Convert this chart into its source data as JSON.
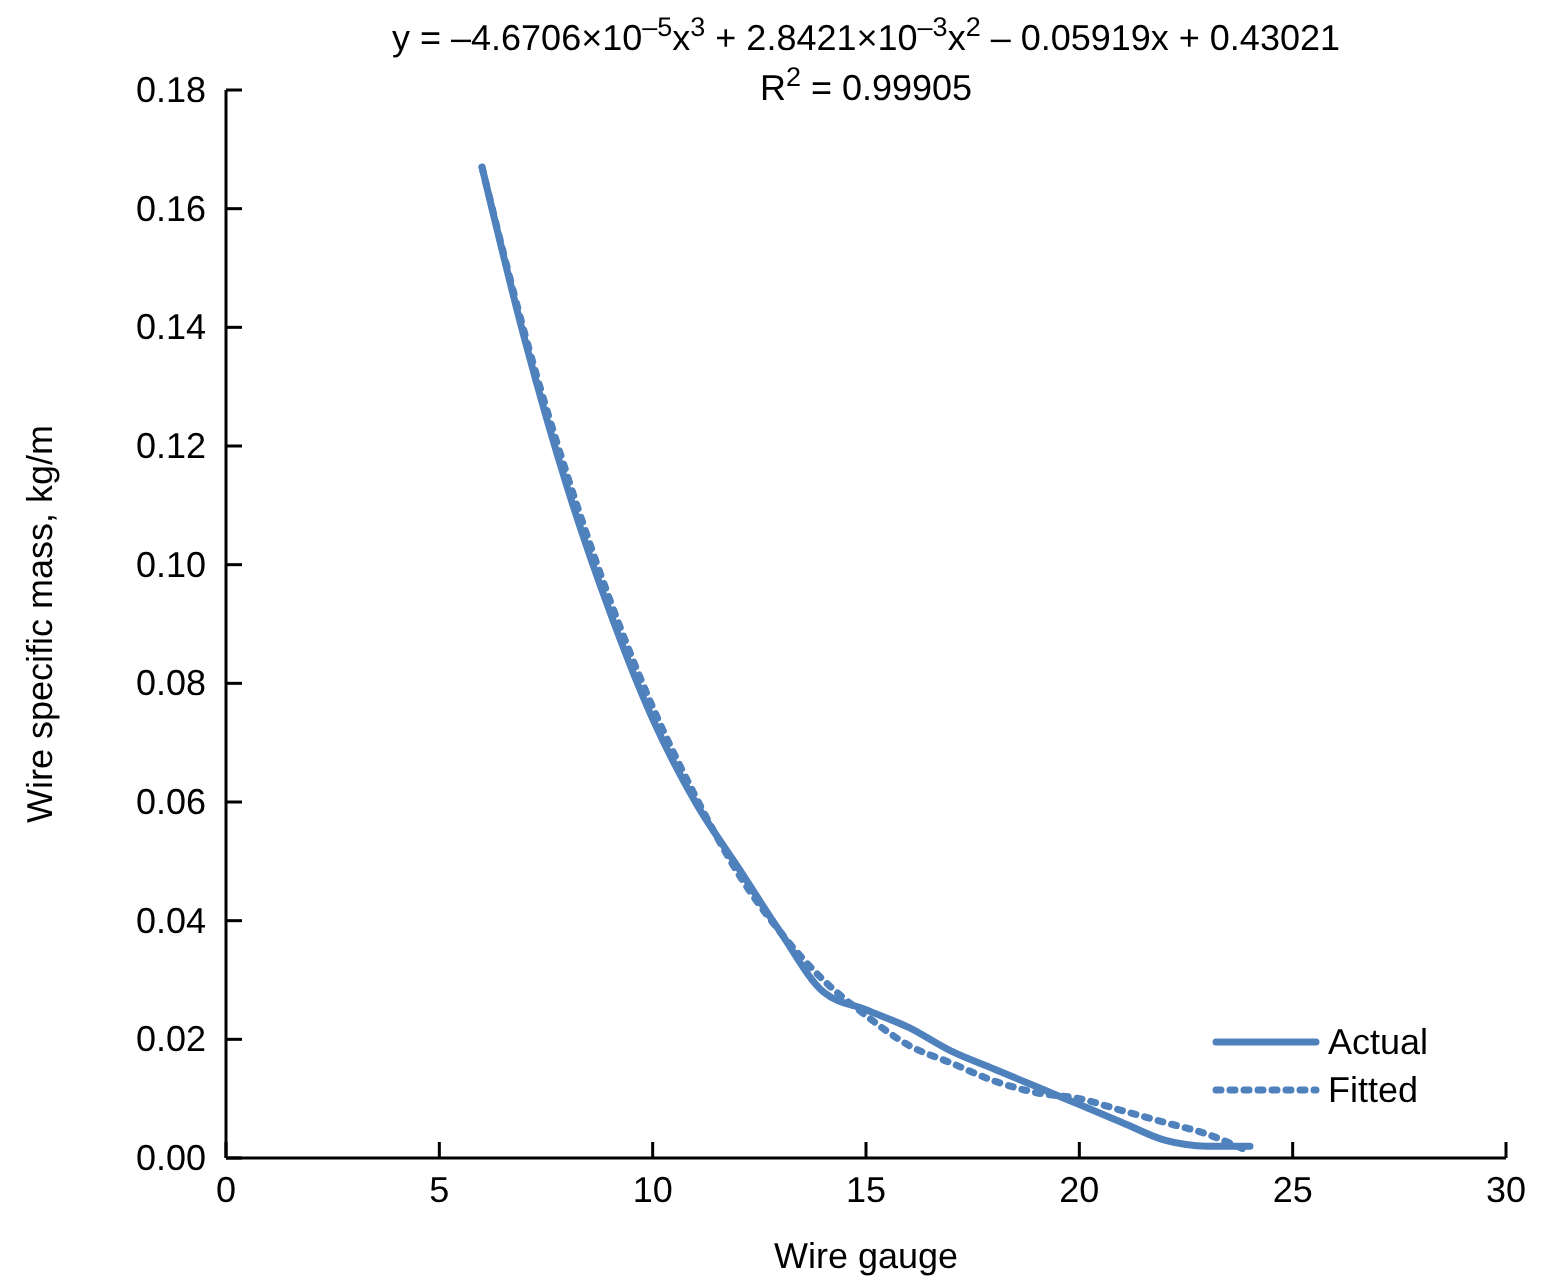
{
  "chart_data": {
    "type": "line",
    "title": "y = –4.6706×10$^{–5}$x$^{3}$ + 2.8421×10$^{–3}$x$^{2}$ – 0.05919x + 0.43021",
    "subtitle": "R$^{2}$ = 0.99905",
    "xlabel": "Wire gauge",
    "ylabel": "Wire specific mass, kg/m",
    "x": [
      6,
      7,
      8,
      9,
      10,
      11,
      12,
      13,
      14,
      15,
      16,
      17,
      18,
      19,
      20,
      21,
      22,
      23,
      24
    ],
    "series": [
      {
        "name": "Actual",
        "color": "#4f81bd",
        "line_style": "solid",
        "values": [
          0.167,
          0.138,
          0.113,
          0.092,
          0.074,
          0.06,
          0.049,
          0.038,
          0.028,
          0.025,
          0.022,
          0.018,
          0.015,
          0.012,
          0.009,
          0.006,
          0.003,
          0.002,
          0.002
        ]
      },
      {
        "name": "Fitted",
        "color": "#4f81bd",
        "line_style": "dotted",
        "values": [
          0.167,
          0.139,
          0.115,
          0.094,
          0.076,
          0.061,
          0.048,
          0.038,
          0.03,
          0.024,
          0.019,
          0.016,
          0.013,
          0.011,
          0.01,
          0.008,
          0.006,
          0.004,
          0.001
        ]
      }
    ],
    "xlim": [
      0,
      30
    ],
    "xticks": [
      0,
      5,
      10,
      15,
      20,
      25,
      30
    ],
    "ylim": [
      0,
      0.18
    ],
    "yticks": [
      {
        "value": 0,
        "label": "0.00"
      },
      {
        "value": 0.02,
        "label": "0.02"
      },
      {
        "value": 0.04,
        "label": "0.04"
      },
      {
        "value": 0.06,
        "label": "0.06"
      },
      {
        "value": 0.08,
        "label": "0.08"
      },
      {
        "value": 0.1,
        "label": "0.10"
      },
      {
        "value": 0.12,
        "label": "0.12"
      },
      {
        "value": 0.14,
        "label": "0.14"
      },
      {
        "value": 0.16,
        "label": "0.16"
      },
      {
        "value": 0.18,
        "label": "0.18"
      }
    ],
    "grid": false,
    "legend": "bottom right",
    "marker": "none"
  }
}
